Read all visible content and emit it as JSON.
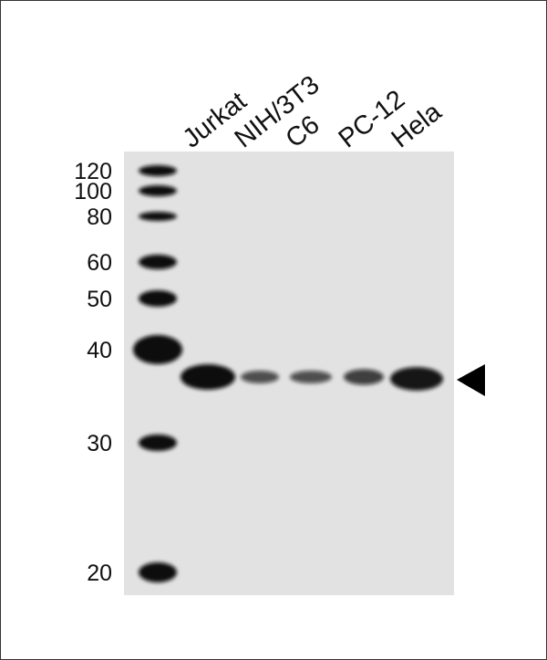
{
  "lanes": [
    {
      "label": "Jurkat",
      "band_intensity": 1.0
    },
    {
      "label": "NIH/3T3",
      "band_intensity": 0.35
    },
    {
      "label": "C6",
      "band_intensity": 0.35
    },
    {
      "label": "PC-12",
      "band_intensity": 0.5
    },
    {
      "label": "Hela",
      "band_intensity": 0.9
    }
  ],
  "markers_kda": [
    "120",
    "100",
    "80",
    "60",
    "50",
    "40",
    "30",
    "20"
  ],
  "target_arrow": "left-pointing-triangle",
  "colors": {
    "membrane": "#e2e2e2",
    "band": "#0a0a0a"
  }
}
